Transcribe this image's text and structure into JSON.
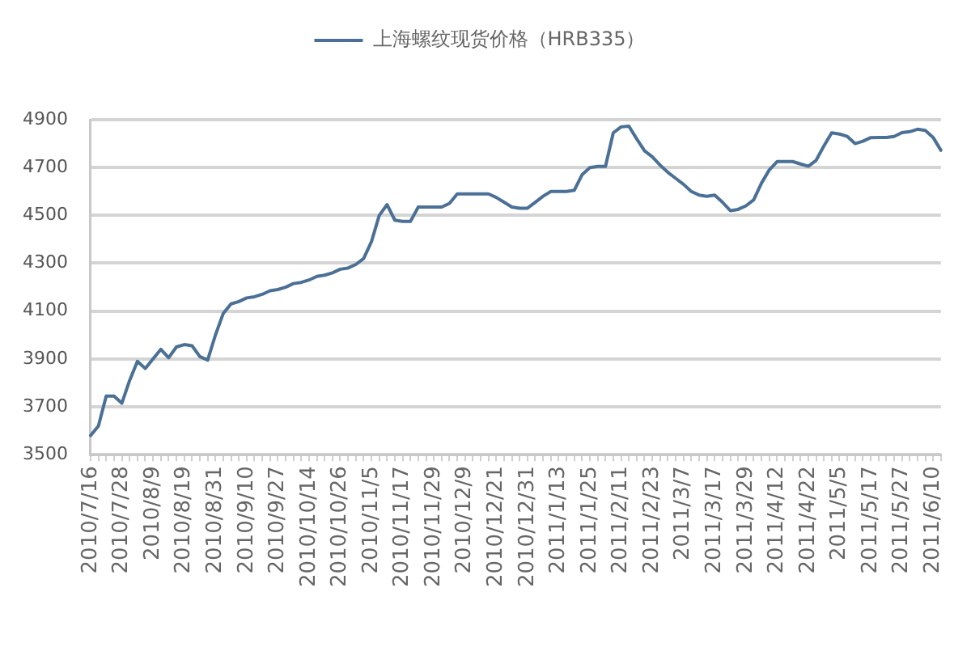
{
  "chart_data": {
    "type": "line",
    "categories": [
      "2010/7/16",
      null,
      null,
      null,
      "2010/7/28",
      null,
      null,
      null,
      "2010/8/9",
      null,
      null,
      null,
      "2010/8/19",
      null,
      null,
      null,
      "2010/8/31",
      null,
      null,
      null,
      "2010/9/10",
      null,
      null,
      null,
      "2010/9/27",
      null,
      null,
      null,
      "2010/10/14",
      null,
      null,
      null,
      "2010/10/26",
      null,
      null,
      null,
      "2010/11/5",
      null,
      null,
      null,
      "2010/11/17",
      null,
      null,
      null,
      "2010/11/29",
      null,
      null,
      null,
      "2010/12/9",
      null,
      null,
      null,
      "2010/12/21",
      null,
      null,
      null,
      "2010/12/31",
      null,
      null,
      null,
      "2011/1/13",
      null,
      null,
      null,
      "2011/1/25",
      null,
      null,
      null,
      "2011/2/11",
      null,
      null,
      null,
      "2011/2/23",
      null,
      null,
      null,
      "2011/3/7",
      null,
      null,
      null,
      "2011/3/17",
      null,
      null,
      null,
      "2011/3/29",
      null,
      null,
      null,
      "2011/4/12",
      null,
      null,
      null,
      "2011/4/22",
      null,
      null,
      null,
      "2011/5/5",
      null,
      null,
      null,
      "2011/5/17",
      null,
      null,
      null,
      "2011/5/27",
      null,
      null,
      null,
      "2011/6/10",
      null
    ],
    "series": [
      {
        "name": "上海螺纹现货价格（HRB335）",
        "color": "#4a7096",
        "values": [
          3580,
          3620,
          3745,
          3745,
          3715,
          3810,
          3890,
          3860,
          3900,
          3940,
          3905,
          3950,
          3960,
          3955,
          3910,
          3895,
          4000,
          4090,
          4130,
          4140,
          4155,
          4160,
          4170,
          4185,
          4190,
          4200,
          4215,
          4220,
          4230,
          4245,
          4250,
          4260,
          4275,
          4280,
          4295,
          4320,
          4390,
          4500,
          4545,
          4480,
          4475,
          4475,
          4535,
          4535,
          4535,
          4535,
          4550,
          4590,
          4590,
          4590,
          4590,
          4590,
          4575,
          4555,
          4535,
          4530,
          4530,
          4555,
          4580,
          4600,
          4600,
          4600,
          4605,
          4670,
          4700,
          4705,
          4705,
          4845,
          4870,
          4873,
          4820,
          4770,
          4745,
          4710,
          4680,
          4655,
          4630,
          4600,
          4585,
          4580,
          4585,
          4555,
          4520,
          4525,
          4540,
          4565,
          4635,
          4690,
          4725,
          4725,
          4725,
          4715,
          4705,
          4730,
          4790,
          4845,
          4840,
          4830,
          4800,
          4810,
          4825,
          4826,
          4826,
          4830,
          4846,
          4850,
          4860,
          4855,
          4826,
          4772
        ]
      }
    ],
    "ylim": [
      3500,
      4900
    ],
    "yticks": [
      3500,
      3700,
      3900,
      4100,
      4300,
      4500,
      4700,
      4900
    ],
    "grid": "y",
    "legend": "top",
    "marker": "none"
  }
}
